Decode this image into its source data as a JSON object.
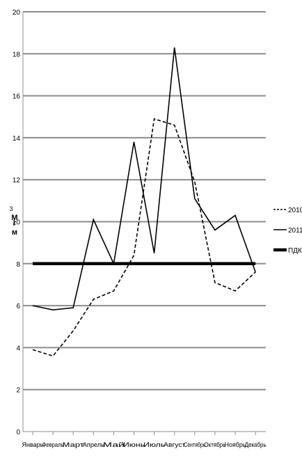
{
  "chart_data": {
    "type": "line",
    "title": "",
    "xlabel": "",
    "ylabel_top": "3",
    "ylabel_mid": "М",
    "ylabel_sub": "г",
    "ylabel_bottom": "м",
    "ylim": [
      0,
      20
    ],
    "yticks": [
      0,
      2,
      4,
      6,
      8,
      10,
      12,
      14,
      16,
      18,
      20
    ],
    "grid": true,
    "legend_position": "right",
    "categories": [
      "Январь",
      "Февраль",
      "Март",
      "Апрель",
      "Май",
      "Июнь",
      "Июль",
      "Август",
      "Сентябрь",
      "Октябрь",
      "Ноябрь",
      "Декабрь"
    ],
    "series": [
      {
        "name": "2010",
        "style": "dashed",
        "color": "#000000",
        "values": [
          3.9,
          3.6,
          4.8,
          6.3,
          6.7,
          8.4,
          14.9,
          14.6,
          11.9,
          7.1,
          6.7,
          7.6
        ]
      },
      {
        "name": "2011",
        "style": "solid",
        "color": "#000000",
        "values": [
          6.0,
          5.8,
          5.9,
          10.1,
          8.0,
          13.8,
          8.5,
          18.3,
          11.1,
          9.6,
          10.3,
          7.6
        ]
      },
      {
        "name": "ПДК",
        "style": "bold",
        "color": "#000000",
        "values": [
          8,
          8,
          8,
          8,
          8,
          8,
          8,
          8,
          8,
          8,
          8,
          8
        ]
      }
    ]
  }
}
